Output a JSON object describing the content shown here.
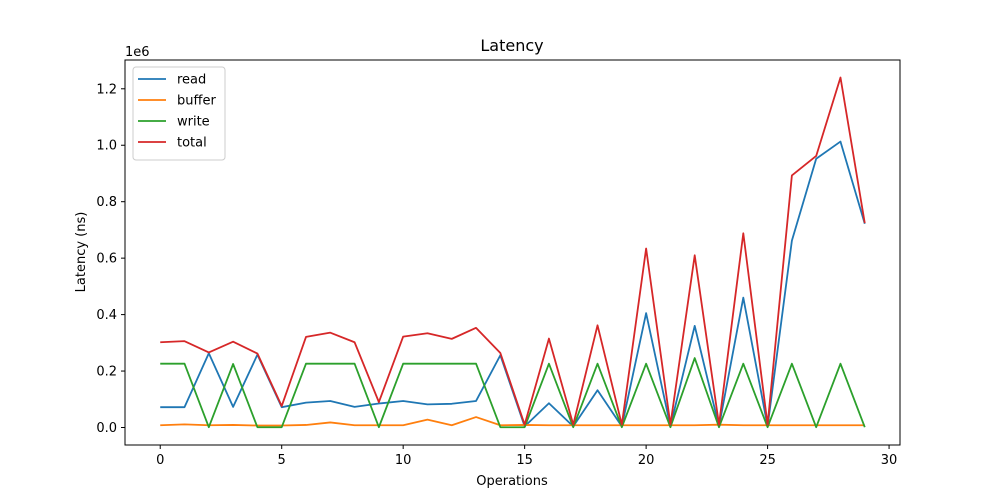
{
  "chart_data": {
    "type": "line",
    "title": "Latency",
    "xlabel": "Operations",
    "ylabel": "Latency (ns)",
    "y_offset_label": "1e6",
    "xlim": [
      -1.45,
      30.45
    ],
    "ylim": [
      -62000,
      1302000
    ],
    "xticks": [
      0,
      5,
      10,
      15,
      20,
      25,
      30
    ],
    "xtick_labels": [
      "0",
      "5",
      "10",
      "15",
      "20",
      "25",
      "30"
    ],
    "yticks": [
      0,
      200000,
      400000,
      600000,
      800000,
      1000000,
      1200000
    ],
    "ytick_labels": [
      "0.0",
      "0.2",
      "0.4",
      "0.6",
      "0.8",
      "1.0",
      "1.2"
    ],
    "grid": false,
    "legend_position": "top-left",
    "x": [
      0,
      1,
      2,
      3,
      4,
      5,
      6,
      7,
      8,
      9,
      10,
      11,
      12,
      13,
      14,
      15,
      16,
      17,
      18,
      19,
      20,
      21,
      22,
      23,
      24,
      25,
      26,
      27,
      28,
      29
    ],
    "series": [
      {
        "name": "read",
        "color": "#1f77b4",
        "values": [
          72000,
          72000,
          263000,
          73000,
          258000,
          72000,
          88000,
          94000,
          73000,
          85000,
          94000,
          82000,
          84000,
          94000,
          256000,
          4000,
          86000,
          4000,
          132000,
          4000,
          405000,
          4000,
          360000,
          4000,
          460000,
          4000,
          662000,
          952000,
          1013000,
          722000
        ]
      },
      {
        "name": "buffer",
        "color": "#ff7f0e",
        "values": [
          8000,
          11000,
          8000,
          9000,
          7000,
          7000,
          9000,
          18000,
          8000,
          8000,
          8000,
          28000,
          8000,
          37000,
          8000,
          9000,
          8000,
          8000,
          8000,
          8000,
          8000,
          8000,
          8000,
          10000,
          8000,
          8000,
          8000,
          8000,
          8000,
          8000
        ]
      },
      {
        "name": "write",
        "color": "#2ca02c",
        "values": [
          226000,
          226000,
          1000,
          225000,
          1000,
          1000,
          226000,
          226000,
          226000,
          1000,
          226000,
          226000,
          226000,
          226000,
          1000,
          1000,
          226000,
          1000,
          226000,
          1000,
          226000,
          1000,
          246000,
          1000,
          226000,
          1000,
          226000,
          1000,
          226000,
          1000
        ]
      },
      {
        "name": "total",
        "color": "#d62728",
        "values": [
          302000,
          306000,
          266000,
          304000,
          262000,
          76000,
          321000,
          336000,
          302000,
          90000,
          322000,
          334000,
          314000,
          353000,
          264000,
          10000,
          315000,
          10000,
          362000,
          10000,
          634000,
          10000,
          610000,
          10000,
          688000,
          10000,
          893000,
          962000,
          1240000,
          724000
        ]
      }
    ]
  }
}
